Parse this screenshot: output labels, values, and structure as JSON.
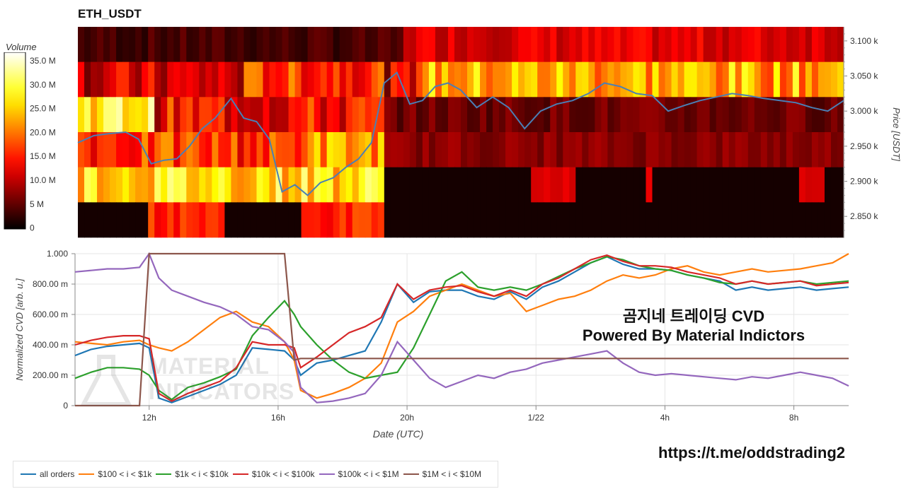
{
  "title": "ETH_USDT",
  "overlay": {
    "line1": "곰지네 트레이딩 CVD",
    "line2": "Powered By Material Indictors",
    "link": "https://t.me/oddstrading2"
  },
  "watermark": {
    "line1": "MATERIAL",
    "line2": "INDICATORS"
  },
  "colorbar": {
    "title": "Volume",
    "ticks": [
      "35.0 M",
      "30.0 M",
      "25.0 M",
      "20.0 M",
      "15.0 M",
      "10.0 M",
      "5 M",
      "0"
    ]
  },
  "chart_data": [
    {
      "type": "heatmap",
      "title": "ETH_USDT",
      "ylabel": "Price [USDT]",
      "price_axis_ticks": [
        "3.100 k",
        "3.050 k",
        "3.000 k",
        "2.950 k",
        "2.900 k",
        "2.850 k"
      ],
      "price_range": [
        2820,
        3120
      ],
      "volume_range": [
        0,
        36000000
      ],
      "price_line_x_hours": [
        0,
        0.5,
        1,
        1.5,
        1.9,
        2.3,
        2.7,
        3.1,
        3.5,
        3.9,
        4.3,
        4.8,
        5.2,
        5.6,
        6.0,
        6.4,
        6.8,
        7.2,
        7.6,
        8.0,
        8.4,
        8.8,
        9.2,
        9.6,
        10.0,
        10.4,
        10.8,
        11.2,
        11.6,
        12.0,
        12.5,
        13.0,
        13.5,
        14.0,
        14.5,
        15.0,
        15.5,
        16.0,
        16.5,
        17.0,
        17.5,
        18.0,
        18.5,
        19.0,
        19.5,
        20.0,
        20.5,
        21.0,
        21.5,
        22.0,
        22.5,
        23.0,
        23.5,
        24.0
      ],
      "price_line_values": [
        2955,
        2965,
        2968,
        2970,
        2960,
        2925,
        2930,
        2932,
        2950,
        2975,
        2990,
        3018,
        2990,
        2985,
        2960,
        2885,
        2895,
        2880,
        2898,
        2905,
        2920,
        2932,
        2955,
        3040,
        3055,
        3010,
        3015,
        3035,
        3040,
        3030,
        3005,
        3020,
        3005,
        2975,
        3000,
        3010,
        3015,
        3025,
        3040,
        3035,
        3025,
        3022,
        3000,
        3008,
        3015,
        3020,
        3025,
        3022,
        3018,
        3015,
        3012,
        3005,
        3000,
        3015
      ]
    },
    {
      "type": "line",
      "xlabel": "Date (UTC)",
      "ylabel": "Normalized CVD [arb. u.]",
      "x_ticks": [
        "12h",
        "16h",
        "20h",
        "1/22",
        "4h",
        "8h"
      ],
      "x_tick_hours": [
        2.3,
        6.3,
        10.3,
        14.3,
        18.3,
        22.3
      ],
      "y_ticks": [
        "0",
        "200.00 m",
        "400.00 m",
        "600.00 m",
        "800.00 m",
        "1.000"
      ],
      "ylim": [
        0,
        1
      ],
      "x_hours": [
        0,
        0.5,
        1,
        1.5,
        2,
        2.3,
        2.6,
        3,
        3.5,
        4,
        4.5,
        5,
        5.5,
        6,
        6.5,
        6.8,
        7,
        7.5,
        8,
        8.5,
        9,
        9.5,
        10,
        10.5,
        11,
        11.5,
        12,
        12.5,
        13,
        13.5,
        14,
        14.5,
        15,
        15.5,
        16,
        16.5,
        17,
        17.5,
        18,
        18.5,
        19,
        19.5,
        20,
        20.5,
        21,
        21.5,
        22,
        22.5,
        23,
        23.5,
        24
      ],
      "series": [
        {
          "name": "all orders",
          "color": "#1f77b4",
          "values": [
            0.33,
            0.37,
            0.39,
            0.4,
            0.41,
            0.38,
            0.05,
            0.02,
            0.06,
            0.1,
            0.14,
            0.2,
            0.38,
            0.37,
            0.36,
            0.3,
            0.2,
            0.28,
            0.3,
            0.33,
            0.36,
            0.55,
            0.8,
            0.68,
            0.75,
            0.76,
            0.76,
            0.72,
            0.7,
            0.75,
            0.7,
            0.78,
            0.82,
            0.88,
            0.94,
            0.98,
            0.93,
            0.9,
            0.9,
            0.89,
            0.86,
            0.84,
            0.82,
            0.76,
            0.78,
            0.76,
            0.77,
            0.78,
            0.76,
            0.77,
            0.78
          ]
        },
        {
          "name": "$100 < i < $1k",
          "color": "#ff7f0e",
          "values": [
            0.42,
            0.41,
            0.4,
            0.42,
            0.43,
            0.4,
            0.38,
            0.36,
            0.42,
            0.5,
            0.58,
            0.62,
            0.55,
            0.52,
            0.42,
            0.3,
            0.1,
            0.05,
            0.08,
            0.12,
            0.18,
            0.28,
            0.55,
            0.62,
            0.72,
            0.76,
            0.8,
            0.76,
            0.72,
            0.74,
            0.62,
            0.66,
            0.7,
            0.72,
            0.76,
            0.82,
            0.86,
            0.84,
            0.86,
            0.9,
            0.92,
            0.88,
            0.86,
            0.88,
            0.9,
            0.88,
            0.89,
            0.9,
            0.92,
            0.94,
            1.0
          ]
        },
        {
          "name": "$1k < i < $10k",
          "color": "#2ca02c",
          "values": [
            0.18,
            0.22,
            0.25,
            0.25,
            0.24,
            0.2,
            0.1,
            0.04,
            0.12,
            0.15,
            0.19,
            0.24,
            0.46,
            0.58,
            0.69,
            0.6,
            0.52,
            0.4,
            0.3,
            0.22,
            0.18,
            0.2,
            0.22,
            0.38,
            0.6,
            0.82,
            0.88,
            0.78,
            0.76,
            0.78,
            0.76,
            0.8,
            0.85,
            0.9,
            0.94,
            0.98,
            0.96,
            0.92,
            0.9,
            0.89,
            0.86,
            0.84,
            0.81,
            0.8,
            0.82,
            0.8,
            0.81,
            0.82,
            0.8,
            0.81,
            0.82
          ]
        },
        {
          "name": "$10k < i < $100k",
          "color": "#d62728",
          "values": [
            0.4,
            0.43,
            0.45,
            0.46,
            0.46,
            0.44,
            0.08,
            0.03,
            0.08,
            0.12,
            0.16,
            0.25,
            0.42,
            0.4,
            0.4,
            0.38,
            0.25,
            0.32,
            0.4,
            0.48,
            0.52,
            0.58,
            0.8,
            0.7,
            0.76,
            0.78,
            0.79,
            0.75,
            0.72,
            0.76,
            0.72,
            0.8,
            0.84,
            0.9,
            0.96,
            0.99,
            0.95,
            0.92,
            0.92,
            0.91,
            0.88,
            0.86,
            0.84,
            0.8,
            0.82,
            0.8,
            0.81,
            0.82,
            0.79,
            0.8,
            0.81
          ]
        },
        {
          "name": "$100k < i < $1M",
          "color": "#9467bd",
          "values": [
            0.88,
            0.89,
            0.9,
            0.9,
            0.91,
            1.0,
            0.84,
            0.76,
            0.72,
            0.68,
            0.65,
            0.6,
            0.52,
            0.5,
            0.42,
            0.35,
            0.12,
            0.02,
            0.03,
            0.05,
            0.08,
            0.2,
            0.42,
            0.3,
            0.18,
            0.12,
            0.16,
            0.2,
            0.18,
            0.22,
            0.24,
            0.28,
            0.3,
            0.32,
            0.34,
            0.36,
            0.28,
            0.22,
            0.2,
            0.21,
            0.2,
            0.19,
            0.18,
            0.17,
            0.19,
            0.18,
            0.2,
            0.22,
            0.2,
            0.18,
            0.13
          ]
        },
        {
          "name": "$1M < i < $10M",
          "color": "#8c564b",
          "values": [
            0,
            0,
            0,
            0,
            0,
            1.0,
            1.0,
            1.0,
            1.0,
            1.0,
            1.0,
            1.0,
            1.0,
            1.0,
            1.0,
            0.3,
            0.31,
            0.31,
            0.31,
            0.31,
            0.31,
            0.31,
            0.31,
            0.31,
            0.31,
            0.31,
            0.31,
            0.31,
            0.31,
            0.31,
            0.31,
            0.31,
            0.31,
            0.31,
            0.31,
            0.31,
            0.31,
            0.31,
            0.31,
            0.31,
            0.31,
            0.31,
            0.31,
            0.31,
            0.31,
            0.31,
            0.31,
            0.31,
            0.31,
            0.31,
            0.31
          ]
        }
      ],
      "legend_placement": "bottom-left"
    }
  ]
}
